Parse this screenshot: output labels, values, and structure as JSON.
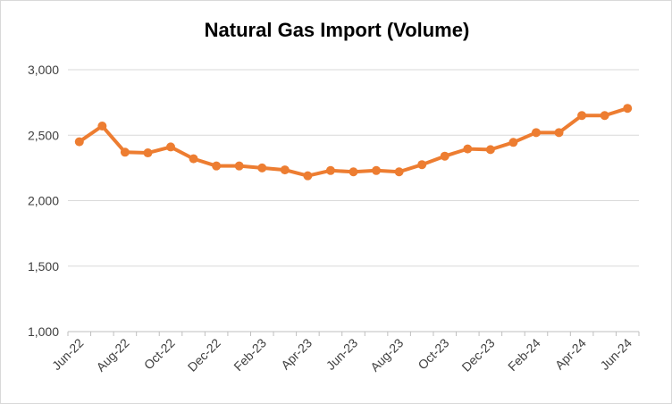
{
  "chart_data": {
    "type": "line",
    "title": "Natural Gas Import (Volume)",
    "xlabel": "",
    "ylabel": "",
    "ylim": [
      1000,
      3000
    ],
    "yticks": [
      1000,
      1500,
      2000,
      2500,
      3000
    ],
    "ytick_labels": [
      "1,000",
      "1,500",
      "2,000",
      "2,500",
      "3,000"
    ],
    "grid": true,
    "legend": "none",
    "x": [
      "Jun-22",
      "Jul-22",
      "Aug-22",
      "Sep-22",
      "Oct-22",
      "Nov-22",
      "Dec-22",
      "Jan-23",
      "Feb-23",
      "Mar-23",
      "Apr-23",
      "May-23",
      "Jun-23",
      "Jul-23",
      "Aug-23",
      "Sep-23",
      "Oct-23",
      "Nov-23",
      "Dec-23",
      "Jan-24",
      "Feb-24",
      "Mar-24",
      "Apr-24",
      "May-24",
      "Jun-24"
    ],
    "xtick_labels": [
      "Jun-22",
      "Aug-22",
      "Oct-22",
      "Dec-22",
      "Feb-23",
      "Apr-23",
      "Jun-23",
      "Aug-23",
      "Oct-23",
      "Dec-23",
      "Feb-24",
      "Apr-24",
      "Jun-24"
    ],
    "series": [
      {
        "values": [
          2450,
          2570,
          2370,
          2365,
          2410,
          2320,
          2265,
          2265,
          2250,
          2235,
          2190,
          2230,
          2220,
          2230,
          2220,
          2275,
          2340,
          2395,
          2390,
          2445,
          2520,
          2520,
          2650,
          2650,
          2705
        ],
        "color": "#ED7D31"
      }
    ],
    "colors": {
      "line": "#ED7D31",
      "grid": "#d9d9d9",
      "axis": "#bfbfbf"
    }
  }
}
